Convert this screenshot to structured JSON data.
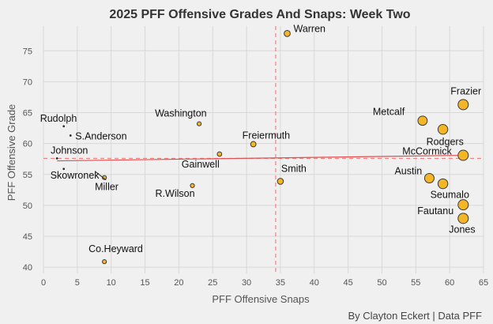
{
  "chart_data": {
    "type": "scatter",
    "title": "2025 PFF Offensive Grades And Snaps: Week Two",
    "xlabel": "PFF Offensive Snaps",
    "ylabel": "PFF Offensive Grade",
    "caption": "By Clayton Eckert | Data PFF",
    "xlim": [
      0,
      65
    ],
    "ylim": [
      39,
      79
    ],
    "xticks": [
      0,
      5,
      10,
      15,
      20,
      25,
      30,
      35,
      40,
      45,
      50,
      55,
      60,
      65
    ],
    "yticks": [
      40,
      45,
      50,
      55,
      60,
      65,
      70,
      75
    ],
    "grid": true,
    "mean_lines": {
      "x": 34.3,
      "y": 57.6
    },
    "trend_line": {
      "x": [
        2,
        62
      ],
      "y": [
        57.2,
        58.1
      ]
    },
    "points": [
      {
        "name": "Warren",
        "snaps": 36,
        "grade": 77.8
      },
      {
        "name": "Frazier",
        "snaps": 62,
        "grade": 66.3
      },
      {
        "name": "Metcalf",
        "snaps": 56,
        "grade": 63.7
      },
      {
        "name": "Rodgers",
        "snaps": 59,
        "grade": 62.3
      },
      {
        "name": "McCormick",
        "snaps": 62,
        "grade": 58.1
      },
      {
        "name": "Austin",
        "snaps": 57,
        "grade": 54.4
      },
      {
        "name": "Seumalo",
        "snaps": 59,
        "grade": 53.5
      },
      {
        "name": "Fautanu",
        "snaps": 62,
        "grade": 50.1
      },
      {
        "name": "Jones",
        "snaps": 62,
        "grade": 47.9
      },
      {
        "name": "Washington",
        "snaps": 23,
        "grade": 63.2
      },
      {
        "name": "Freiermuth",
        "snaps": 31,
        "grade": 59.9
      },
      {
        "name": "Gainwell",
        "snaps": 26,
        "grade": 58.3
      },
      {
        "name": "Smith",
        "snaps": 35,
        "grade": 53.9
      },
      {
        "name": "R.Wilson",
        "snaps": 22,
        "grade": 53.2
      },
      {
        "name": "Rudolph",
        "snaps": 3,
        "grade": 62.8
      },
      {
        "name": "S.Anderson",
        "snaps": 4,
        "grade": 61.3
      },
      {
        "name": "Johnson",
        "snaps": 2,
        "grade": 57.6
      },
      {
        "name": "Skowronek",
        "snaps": 3,
        "grade": 55.9
      },
      {
        "name": "Miller",
        "snaps": 9,
        "grade": 54.5
      },
      {
        "name": "Co.Heyward",
        "snaps": 9,
        "grade": 40.9
      }
    ],
    "colors": {
      "background": "#f0f0f0",
      "grid": "#d8d8d8",
      "point_fill": "#f5b625",
      "point_stroke": "#3a3a3a",
      "mean_line": "#f08080",
      "trend_line": "#e05050"
    }
  }
}
